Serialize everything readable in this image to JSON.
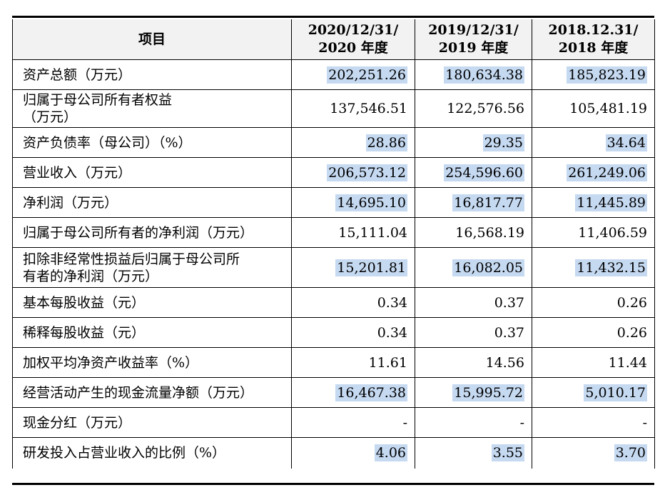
{
  "table": {
    "headers": [
      "项目",
      "2020/12/31/\n2020 年度",
      "2019/12/31/\n2019 年度",
      "2018.12.31/\n2018 年度"
    ],
    "rows": [
      {
        "label": "资产总额（万元）",
        "values": [
          "202,251.26",
          "180,634.38",
          "185,823.19"
        ],
        "highlight": true
      },
      {
        "label": "归属于母公司所有者权益\n（万元）",
        "values": [
          "137,546.51",
          "122,576.56",
          "105,481.19"
        ],
        "highlight": false
      },
      {
        "label": "资产负债率（母公司）（%）",
        "values": [
          "28.86",
          "29.35",
          "34.64"
        ],
        "highlight": true
      },
      {
        "label": "营业收入（万元）",
        "values": [
          "206,573.12",
          "254,596.60",
          "261,249.06"
        ],
        "highlight": true
      },
      {
        "label": "净利润（万元）",
        "values": [
          "14,695.10",
          "16,817.77",
          "11,445.89"
        ],
        "highlight": true
      },
      {
        "label": "归属于母公司所有者的净利润（万元）",
        "values": [
          "15,111.04",
          "16,568.19",
          "11,406.59"
        ],
        "highlight": false
      },
      {
        "label": "扣除非经常性损益后归属于母公司所\n有者的净利润（万元）",
        "values": [
          "15,201.81",
          "16,082.05",
          "11,432.15"
        ],
        "highlight": true
      },
      {
        "label": "基本每股收益（元）",
        "values": [
          "0.34",
          "0.37",
          "0.26"
        ],
        "highlight": false
      },
      {
        "label": "稀释每股收益（元）",
        "values": [
          "0.34",
          "0.37",
          "0.26"
        ],
        "highlight": false
      },
      {
        "label": "加权平均净资产收益率（%）",
        "values": [
          "11.61",
          "14.56",
          "11.44"
        ],
        "highlight": false
      },
      {
        "label": "经营活动产生的现金流量净额（万元）",
        "values": [
          "16,467.38",
          "15,995.72",
          "5,010.17"
        ],
        "highlight": true
      },
      {
        "label": "现金分红（万元）",
        "values": [
          "-",
          "-",
          "-"
        ],
        "highlight": false
      },
      {
        "label": "研发投入占营业收入的比例（%）",
        "values": [
          "4.06",
          "3.55",
          "3.70"
        ],
        "highlight": true
      }
    ]
  },
  "colors": {
    "highlight": "#c5d9f1",
    "header_bg": "#f2f2f2"
  }
}
